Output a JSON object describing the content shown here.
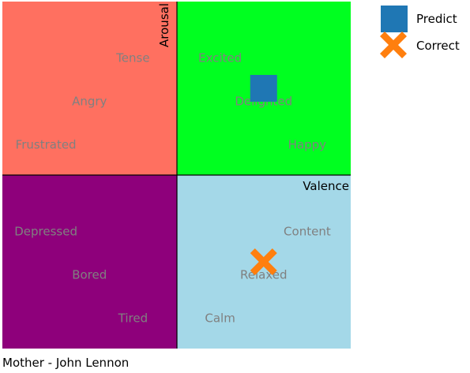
{
  "chart_data": {
    "type": "scatter",
    "title": "",
    "caption": "Mother - John Lennon",
    "xlabel": "Valence",
    "ylabel": "Arousal",
    "xlim": [
      -1,
      1
    ],
    "ylim": [
      -1,
      1
    ],
    "grid": false,
    "legend_position": "top-right",
    "quadrants": [
      {
        "name": "high-arousal-negative-valence",
        "color": "#ff7060"
      },
      {
        "name": "high-arousal-positive-valence",
        "color": "#00ff20"
      },
      {
        "name": "low-arousal-negative-valence",
        "color": "#8e007b"
      },
      {
        "name": "low-arousal-positive-valence",
        "color": "#a4d8e8"
      }
    ],
    "mood_labels": [
      {
        "text": "Tense",
        "x": -0.25,
        "y": 0.675
      },
      {
        "text": "Angry",
        "x": -0.5,
        "y": 0.425
      },
      {
        "text": "Frustrated",
        "x": -0.75,
        "y": 0.175
      },
      {
        "text": "Excited",
        "x": 0.25,
        "y": 0.675
      },
      {
        "text": "Delighted",
        "x": 0.5,
        "y": 0.425
      },
      {
        "text": "Happy",
        "x": 0.75,
        "y": 0.175
      },
      {
        "text": "Depressed",
        "x": -0.75,
        "y": -0.325
      },
      {
        "text": "Bored",
        "x": -0.5,
        "y": -0.575
      },
      {
        "text": "Tired",
        "x": -0.25,
        "y": -0.825
      },
      {
        "text": "Content",
        "x": 0.75,
        "y": -0.325
      },
      {
        "text": "Relaxed",
        "x": 0.5,
        "y": -0.575
      },
      {
        "text": "Calm",
        "x": 0.25,
        "y": -0.825
      }
    ],
    "series": [
      {
        "name": "Predict",
        "marker": "square",
        "color": "#1f77b4",
        "points": [
          {
            "x": 0.5,
            "y": 0.5
          }
        ]
      },
      {
        "name": "Correct",
        "marker": "x",
        "color": "#ff7f0e",
        "points": [
          {
            "x": 0.5,
            "y": -0.5
          }
        ]
      }
    ]
  }
}
